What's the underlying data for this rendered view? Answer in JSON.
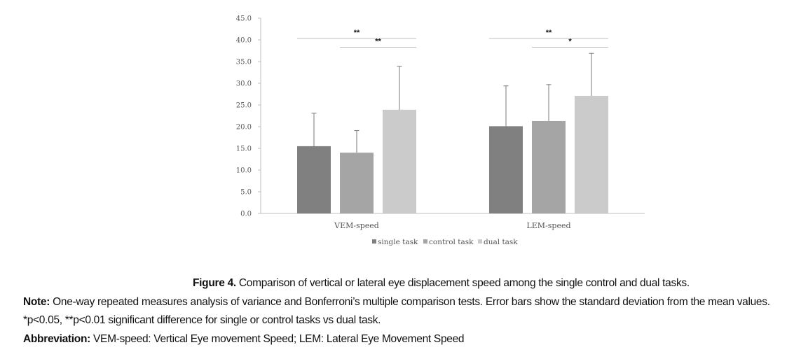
{
  "chart_data": {
    "type": "bar",
    "categories": [
      "VEM-speed",
      "LEM-speed"
    ],
    "series": [
      {
        "name": "single task",
        "values": [
          15.5,
          20.1
        ],
        "sd": [
          7.6,
          9.3
        ],
        "color": "#808080"
      },
      {
        "name": "control task",
        "values": [
          14.0,
          21.3
        ],
        "sd": [
          5.1,
          8.4
        ],
        "color": "#a5a5a5"
      },
      {
        "name": "dual task",
        "values": [
          23.9,
          27.1
        ],
        "sd": [
          10.0,
          9.8
        ],
        "color": "#cbcbcb"
      }
    ],
    "ylim": [
      0,
      45
    ],
    "yticks": [
      "0.0",
      "5.0",
      "10.0",
      "15.0",
      "20.0",
      "25.0",
      "30.0",
      "35.0",
      "40.0",
      "45.0"
    ],
    "xlabel": "",
    "ylabel": "",
    "legend_position": "bottom",
    "grid": false,
    "significance": [
      {
        "category": 0,
        "from_series": 0,
        "to_series": 2,
        "y": 40.3,
        "label": "**"
      },
      {
        "category": 0,
        "from_series": 1,
        "to_series": 2,
        "y": 38.3,
        "label": "**"
      },
      {
        "category": 1,
        "from_series": 0,
        "to_series": 2,
        "y": 40.3,
        "label": "**"
      },
      {
        "category": 1,
        "from_series": 1,
        "to_series": 2,
        "y": 38.3,
        "label": "*"
      }
    ]
  },
  "caption": {
    "figure_label": "Figure 4.",
    "figure_text": " Comparison of vertical or lateral eye displacement speed among the single control and dual tasks.",
    "note_label": "Note:",
    "note_text": " One-way repeated measures analysis of variance and Bonferroni’s multiple comparison tests. Error bars show the standard deviation from the mean values.",
    "sig_text": "*p<0.05, **p<0.01 significant difference for single or control tasks vs dual task.",
    "abbrev_label": "Abbreviation:",
    "abbrev_text": " VEM-speed: Vertical Eye movement Speed; LEM: Lateral Eye Movement Speed"
  }
}
